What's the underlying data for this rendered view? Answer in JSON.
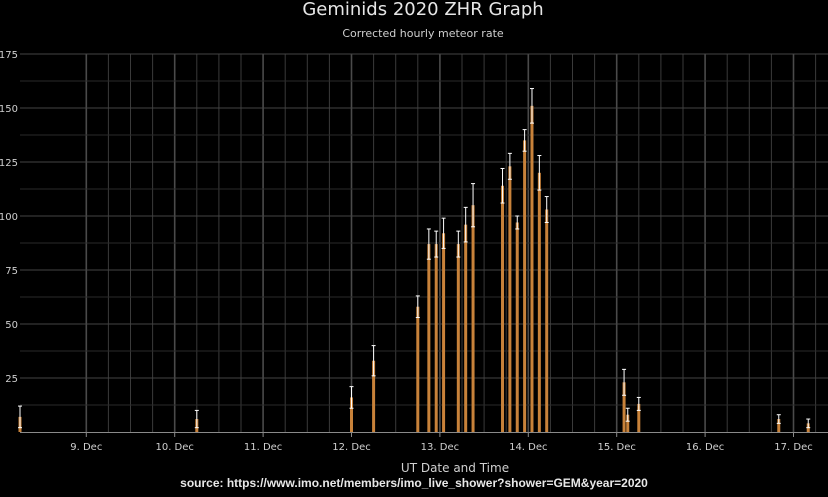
{
  "chart_data": {
    "type": "bar",
    "title": "Geminids 2020 ZHR Graph",
    "subtitle": "Corrected hourly meteor rate",
    "xlabel": "UT Date and Time",
    "ylabel": "",
    "ylim": [
      0,
      175
    ],
    "yticks": [
      25,
      50,
      75,
      100,
      125,
      150,
      175
    ],
    "xlim": [
      "2020-12-08 09:00",
      "2020-12-17 14:00"
    ],
    "xticks": [
      "9. Dec",
      "10. Dec",
      "11. Dec",
      "12. Dec",
      "13. Dec",
      "14. Dec",
      "15. Dec",
      "16. Dec",
      "17. Dec"
    ],
    "grid": true,
    "colors": {
      "bar": "#c8823a",
      "error": "#ffffff",
      "grid": "#3a3a3a",
      "background": "#000000"
    },
    "points": [
      {
        "time": "2020-12-08 09:00",
        "zhr": 7,
        "err": 5
      },
      {
        "time": "2020-12-10 09:00",
        "zhr": 6,
        "err": 4
      },
      {
        "time": "2020-12-12 03:00",
        "zhr": 16,
        "err": 5
      },
      {
        "time": "2020-12-12 09:00",
        "zhr": 33,
        "err": 7
      },
      {
        "time": "2020-12-12 21:00",
        "zhr": 58,
        "err": 5
      },
      {
        "time": "2020-12-13 00:00",
        "zhr": 87,
        "err": 7
      },
      {
        "time": "2020-12-13 02:00",
        "zhr": 87,
        "err": 6
      },
      {
        "time": "2020-12-13 04:00",
        "zhr": 92,
        "err": 7
      },
      {
        "time": "2020-12-13 08:00",
        "zhr": 87,
        "err": 6
      },
      {
        "time": "2020-12-13 10:00",
        "zhr": 96,
        "err": 8
      },
      {
        "time": "2020-12-13 12:00",
        "zhr": 105,
        "err": 10
      },
      {
        "time": "2020-12-13 20:00",
        "zhr": 114,
        "err": 8
      },
      {
        "time": "2020-12-13 22:00",
        "zhr": 123,
        "err": 6
      },
      {
        "time": "2020-12-14 00:00",
        "zhr": 97,
        "err": 3
      },
      {
        "time": "2020-12-14 02:00",
        "zhr": 135,
        "err": 5
      },
      {
        "time": "2020-12-14 04:00",
        "zhr": 151,
        "err": 8
      },
      {
        "time": "2020-12-14 06:00",
        "zhr": 120,
        "err": 8
      },
      {
        "time": "2020-12-14 08:00",
        "zhr": 103,
        "err": 6
      },
      {
        "time": "2020-12-15 05:00",
        "zhr": 23,
        "err": 6
      },
      {
        "time": "2020-12-15 06:00",
        "zhr": 8,
        "err": 3
      },
      {
        "time": "2020-12-15 09:00",
        "zhr": 13,
        "err": 3
      },
      {
        "time": "2020-12-16 23:00",
        "zhr": 6,
        "err": 2
      },
      {
        "time": "2020-12-17 07:00",
        "zhr": 4,
        "err": 2
      }
    ]
  },
  "source_text": "source: https://www.imo.net/members/imo_live_shower?shower=GEM&year=2020"
}
